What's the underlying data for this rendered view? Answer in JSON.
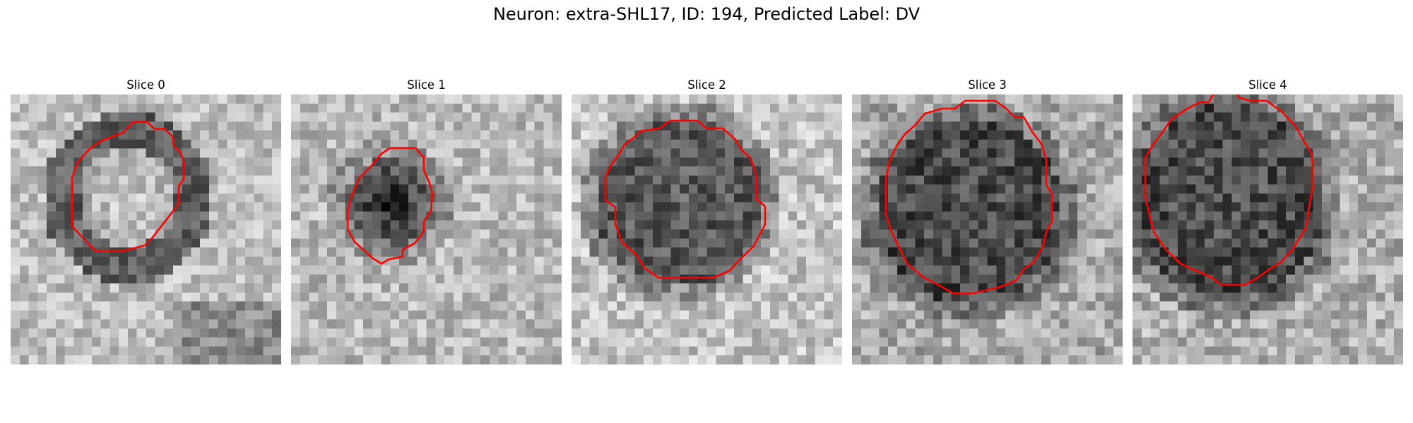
{
  "figure": {
    "title": "Neuron: extra-SHL17, ID: 194, Predicted Label: DV"
  },
  "colors": {
    "contour": "#ff0000",
    "background": "#ffffff"
  },
  "panels": [
    {
      "title": "Slice 0",
      "cell_appearance": "bright-center-dark-ring"
    },
    {
      "title": "Slice 1",
      "cell_appearance": "dark-center-small"
    },
    {
      "title": "Slice 2",
      "cell_appearance": "dark-uniform-large"
    },
    {
      "title": "Slice 3",
      "cell_appearance": "dark-uniform-larger"
    },
    {
      "title": "Slice 4",
      "cell_appearance": "dark-uniform-clipped"
    }
  ]
}
